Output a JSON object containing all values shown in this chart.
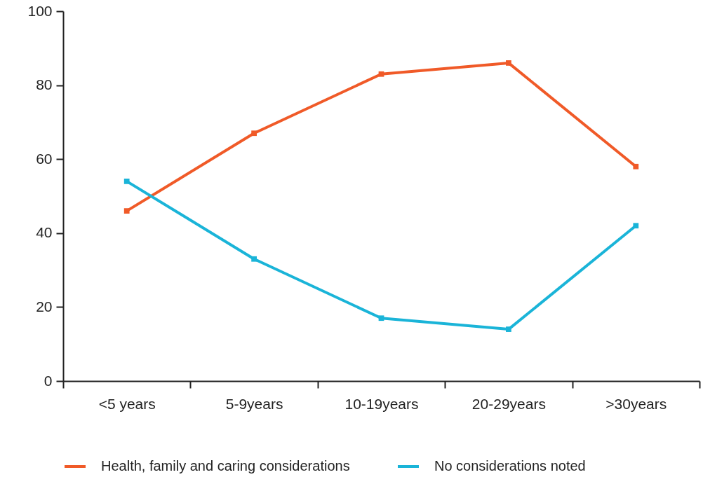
{
  "chart_data": {
    "type": "line",
    "categories": [
      "<5 years",
      "5-9years",
      "10-19years",
      "20-29years",
      ">30years"
    ],
    "series": [
      {
        "name": "Health, family and caring considerations",
        "color": "#f05a28",
        "values": [
          46,
          67,
          83,
          86,
          58
        ]
      },
      {
        "name": "No considerations noted",
        "color": "#1ab4d8",
        "values": [
          54,
          33,
          17,
          14,
          42
        ]
      }
    ],
    "ylim": [
      0,
      100
    ],
    "yticks": [
      0,
      20,
      40,
      60,
      80,
      100
    ],
    "grid": false,
    "legend": "bottom",
    "marker": "square",
    "line_style": "solid"
  }
}
